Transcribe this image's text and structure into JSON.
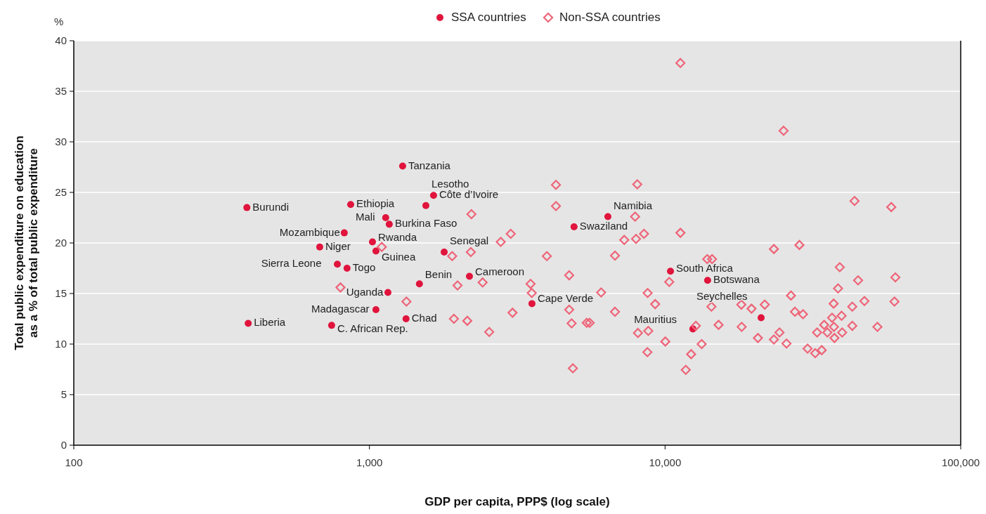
{
  "chart_data": {
    "type": "scatter",
    "xlabel": "GDP per capita, PPP$ (log scale)",
    "ylabel": "Total public expenditure on education\nas a % of total public expenditure",
    "log": "x",
    "xlim": [
      100,
      100000
    ],
    "xticks": [
      {
        "value": 100,
        "label": "100"
      },
      {
        "value": 1000,
        "label": "1,000"
      },
      {
        "value": 10000,
        "label": "10,000"
      },
      {
        "value": 100000,
        "label": "100,000"
      }
    ],
    "ylim": [
      0,
      40
    ],
    "yticks": [
      0,
      5,
      10,
      15,
      20,
      25,
      30,
      35,
      40
    ],
    "grid": "y",
    "legend": "top",
    "series": [
      {
        "name": "SSA countries",
        "color": "#e0143c",
        "marker": "circle",
        "x": [
          385,
          389,
          679,
          779,
          840,
          745,
          822,
          864,
          1024,
          1052,
          1052,
          1135,
          1167,
          1155,
          1295,
          1330,
          1476,
          1552,
          1648,
          1790,
          2179,
          3546,
          4921,
          6406,
          10430,
          13930,
          12420,
          21130
        ],
        "values": [
          23.5,
          12.05,
          19.6,
          17.9,
          17.5,
          11.85,
          21.0,
          23.8,
          20.1,
          19.2,
          13.4,
          22.5,
          21.85,
          15.1,
          27.6,
          12.5,
          15.95,
          23.7,
          24.7,
          19.1,
          16.7,
          14.0,
          21.6,
          22.6,
          17.2,
          16.3,
          11.5,
          12.6
        ]
      },
      {
        "name": "Non-SSA countries",
        "color": "#ee6478",
        "marker": "diamond",
        "x": [
          2213,
          3006,
          2781,
          1101,
          1905,
          2203,
          798,
          1986,
          2415,
          1334,
          1931,
          2143,
          2542,
          3048,
          4275,
          8054,
          4275,
          7919,
          7277,
          7976,
          8489,
          11270,
          3982,
          6770,
          13890,
          14420,
          4739,
          3508,
          3541,
          6078,
          8730,
          9260,
          10330,
          14350,
          4740,
          6770,
          4829,
          5433,
          5559,
          8096,
          8775,
          10020,
          12710,
          8713,
          12250,
          13300,
          11750,
          4877,
          11270,
          25170,
          43740,
          58230,
          23340,
          28470,
          38990,
          44970,
          60120,
          38470,
          18110,
          19610,
          21740,
          26660,
          37170,
          42980,
          47240,
          59700,
          27500,
          29280,
          36720,
          39550,
          34530,
          37260,
          42980,
          52270,
          32680,
          35400,
          39720,
          24380,
          37400,
          23340,
          20610,
          25750,
          30340,
          32200,
          33880,
          15170,
          18160
        ],
        "values": [
          22.85,
          20.9,
          20.1,
          19.6,
          18.7,
          19.1,
          15.6,
          15.8,
          16.1,
          14.2,
          12.5,
          12.3,
          11.2,
          13.1,
          25.75,
          25.8,
          23.65,
          22.6,
          20.3,
          20.4,
          20.9,
          21.0,
          18.7,
          18.75,
          18.4,
          18.4,
          16.8,
          15.95,
          15.05,
          15.1,
          15.05,
          13.95,
          16.15,
          13.7,
          13.4,
          13.2,
          12.05,
          12.1,
          12.1,
          11.1,
          11.3,
          10.25,
          11.8,
          9.2,
          9.0,
          10.0,
          7.45,
          7.6,
          37.8,
          31.1,
          24.15,
          23.55,
          19.4,
          19.8,
          17.6,
          16.3,
          16.6,
          15.5,
          13.9,
          13.5,
          13.9,
          14.8,
          14.0,
          13.7,
          14.25,
          14.2,
          13.2,
          12.95,
          12.6,
          12.8,
          11.9,
          11.7,
          11.8,
          11.7,
          11.15,
          11.15,
          11.15,
          11.15,
          10.6,
          10.45,
          10.6,
          10.05,
          9.55,
          9.1,
          9.4,
          11.9,
          11.7
        ]
      }
    ],
    "annotations": [
      "%",
      {
        "text": "Burundi",
        "x": 385,
        "y": 23.5
      },
      {
        "text": "Liberia",
        "x": 389,
        "y": 12.05
      },
      {
        "text": "Niger",
        "x": 679,
        "y": 19.6
      },
      {
        "text": "Sierra Leone",
        "x": 779,
        "y": 17.9
      },
      {
        "text": "Togo",
        "x": 840,
        "y": 17.5
      },
      {
        "text": "C. African Rep.",
        "x": 745,
        "y": 11.85
      },
      {
        "text": "Mozambique",
        "x": 822,
        "y": 21.0
      },
      {
        "text": "Ethiopia",
        "x": 864,
        "y": 23.8
      },
      {
        "text": "Rwanda",
        "x": 1024,
        "y": 20.1
      },
      {
        "text": "Guinea",
        "x": 1052,
        "y": 19.2
      },
      {
        "text": "Madagascar",
        "x": 1052,
        "y": 13.4
      },
      {
        "text": "Mali",
        "x": 1135,
        "y": 22.5
      },
      {
        "text": "Burkina Faso",
        "x": 1167,
        "y": 21.85
      },
      {
        "text": "Uganda",
        "x": 1155,
        "y": 15.1
      },
      {
        "text": "Tanzania",
        "x": 1295,
        "y": 27.6
      },
      {
        "text": "Chad",
        "x": 1330,
        "y": 12.5
      },
      {
        "text": "Benin",
        "x": 1476,
        "y": 15.95
      },
      {
        "text": "Lesotho",
        "x": 1552,
        "y": 23.7
      },
      {
        "text": "Côte d’Ivoire",
        "x": 1648,
        "y": 24.7
      },
      {
        "text": "Senegal",
        "x": 1790,
        "y": 19.1
      },
      {
        "text": "Cameroon",
        "x": 2179,
        "y": 16.7
      },
      {
        "text": "Cape Verde",
        "x": 3546,
        "y": 14.0
      },
      {
        "text": "Swaziland",
        "x": 4921,
        "y": 21.6
      },
      {
        "text": "Namibia",
        "x": 6406,
        "y": 22.6
      },
      {
        "text": "South Africa",
        "x": 10430,
        "y": 17.2
      },
      {
        "text": "Botswana",
        "x": 13930,
        "y": 16.3
      },
      {
        "text": "Mauritius",
        "x": 12420,
        "y": 11.5
      },
      {
        "text": "Seychelles",
        "x": 21130,
        "y": 12.6
      }
    ]
  }
}
